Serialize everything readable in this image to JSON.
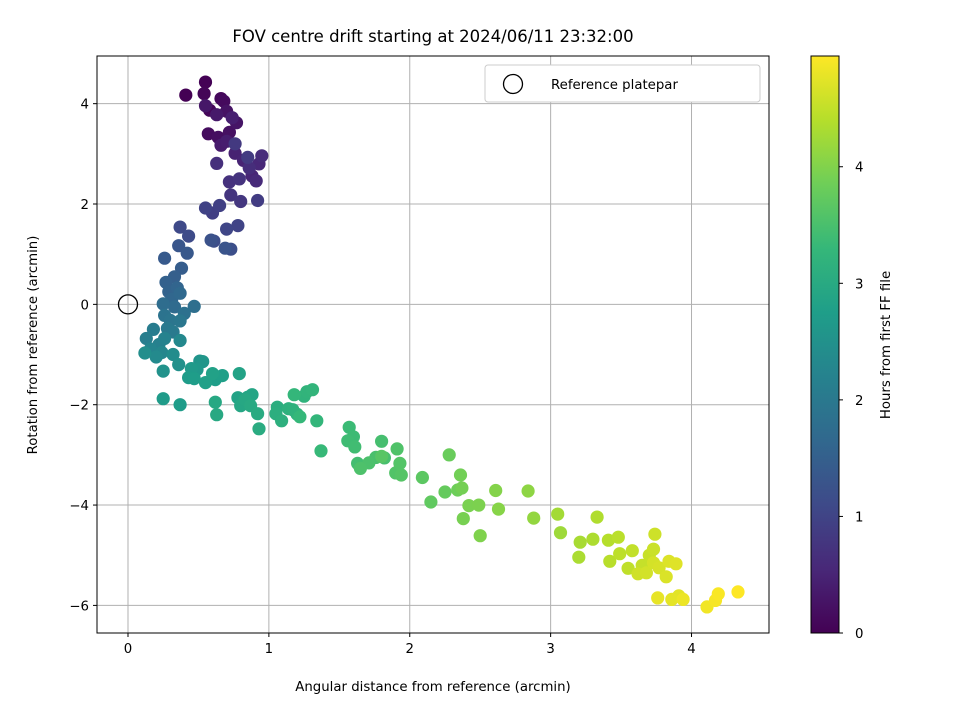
{
  "chart_data": {
    "type": "scatter",
    "title": "FOV centre drift starting at 2024/06/11 23:32:00",
    "xlabel": "Angular distance from reference (arcmin)",
    "ylabel": "Rotation from reference (arcmin)",
    "xlim": [
      -0.22,
      4.55
    ],
    "ylim": [
      -6.55,
      4.95
    ],
    "xticks": [
      "0",
      "1",
      "2",
      "3",
      "4"
    ],
    "yticks": [
      "4",
      "2",
      "0",
      "−2",
      "−4",
      "−6"
    ],
    "grid": true,
    "legend": {
      "entries": [
        "Reference platepar"
      ],
      "placement": "top-right"
    },
    "reference_point": {
      "x": 0,
      "y": 0
    },
    "colorbar": {
      "label": "Hours from first FF file",
      "range": [
        0,
        4.95
      ],
      "ticks": [
        "0",
        "1",
        "2",
        "3",
        "4"
      ],
      "colormap": "viridis",
      "stops": [
        "#440154",
        "#482878",
        "#3e4a89",
        "#31688e",
        "#26828e",
        "#1f9e89",
        "#35b779",
        "#6ece58",
        "#b5de2b",
        "#fde725"
      ]
    },
    "x": [
      0.41,
      0.55,
      0.54,
      0.58,
      0.66,
      0.68,
      0.57,
      0.64,
      0.72,
      0.7,
      0.77,
      0.55,
      0.63,
      0.66,
      0.7,
      0.74,
      0.76,
      0.82,
      0.88,
      0.93,
      0.91,
      0.95,
      0.86,
      0.63,
      0.72,
      0.79,
      0.73,
      0.8,
      0.76,
      0.85,
      0.92,
      0.6,
      0.65,
      0.55,
      0.78,
      0.7,
      0.37,
      0.43,
      0.61,
      0.73,
      0.59,
      0.69,
      0.36,
      0.42,
      0.26,
      0.38,
      0.33,
      0.27,
      0.29,
      0.35,
      0.31,
      0.37,
      0.33,
      0.25,
      0.47,
      0.4,
      0.26,
      0.3,
      0.37,
      0.28,
      0.32,
      0.18,
      0.13,
      0.22,
      0.26,
      0.16,
      0.24,
      0.37,
      0.2,
      0.32,
      0.12,
      0.36,
      0.25,
      0.51,
      0.53,
      0.49,
      0.45,
      0.43,
      0.47,
      0.62,
      0.67,
      0.55,
      0.6,
      0.79,
      0.78,
      0.85,
      0.88,
      0.8,
      0.83,
      0.62,
      0.63,
      0.87,
      0.92,
      0.93,
      0.25,
      0.37,
      1.06,
      1.05,
      1.09,
      1.14,
      1.17,
      1.2,
      1.25,
      1.27,
      1.31,
      1.34,
      1.18,
      1.22,
      1.37,
      1.57,
      1.6,
      1.56,
      1.61,
      1.63,
      1.8,
      1.82,
      1.76,
      1.71,
      1.65,
      1.91,
      1.9,
      1.93,
      1.94,
      1.8,
      2.09,
      2.15,
      2.25,
      2.28,
      2.34,
      2.36,
      2.37,
      2.38,
      2.42,
      2.49,
      2.5,
      2.61,
      2.63,
      2.84,
      2.88,
      3.07,
      3.05,
      3.21,
      3.2,
      3.3,
      3.33,
      3.41,
      3.42,
      3.48,
      3.49,
      3.55,
      3.58,
      3.65,
      3.7,
      3.73,
      3.74,
      3.62,
      3.68,
      3.73,
      3.77,
      3.82,
      3.84,
      3.89,
      3.91,
      3.86,
      3.76,
      3.94,
      4.11,
      4.17,
      4.19,
      4.33
    ],
    "y": [
      4.17,
      4.43,
      4.2,
      3.87,
      4.1,
      4.05,
      3.4,
      3.33,
      3.43,
      3.85,
      3.62,
      3.96,
      3.78,
      3.17,
      3.25,
      3.72,
      3.01,
      2.87,
      2.56,
      2.8,
      2.46,
      2.96,
      2.72,
      2.81,
      2.44,
      2.5,
      2.18,
      2.05,
      3.2,
      2.93,
      2.07,
      1.82,
      1.97,
      1.92,
      1.57,
      1.5,
      1.54,
      1.36,
      1.26,
      1.1,
      1.28,
      1.12,
      1.17,
      1.02,
      0.92,
      0.72,
      0.55,
      0.44,
      0.25,
      0.33,
      0.1,
      0.22,
      -0.05,
      0.01,
      -0.04,
      -0.18,
      -0.22,
      -0.32,
      -0.33,
      -0.48,
      -0.55,
      -0.5,
      -0.68,
      -0.8,
      -0.68,
      -0.89,
      -0.96,
      -0.72,
      -1.05,
      -1.0,
      -0.97,
      -1.2,
      -1.33,
      -1.13,
      -1.14,
      -1.3,
      -1.28,
      -1.46,
      -1.48,
      -1.5,
      -1.42,
      -1.56,
      -1.38,
      -1.38,
      -1.86,
      -1.85,
      -1.8,
      -2.02,
      -1.9,
      -1.95,
      -2.2,
      -2.02,
      -2.18,
      -2.48,
      -1.88,
      -2.0,
      -2.05,
      -2.18,
      -2.32,
      -2.08,
      -2.1,
      -2.19,
      -1.83,
      -1.74,
      -1.7,
      -2.32,
      -1.8,
      -2.24,
      -2.92,
      -2.45,
      -2.64,
      -2.72,
      -2.84,
      -3.17,
      -2.73,
      -3.06,
      -3.05,
      -3.16,
      -3.27,
      -2.88,
      -3.36,
      -3.17,
      -3.4,
      -3.03,
      -3.45,
      -3.94,
      -3.74,
      -3.0,
      -3.7,
      -3.4,
      -3.66,
      -4.27,
      -4.01,
      -4.0,
      -4.61,
      -3.71,
      -4.08,
      -3.72,
      -4.26,
      -4.55,
      -4.18,
      -4.74,
      -5.04,
      -4.68,
      -4.24,
      -4.7,
      -5.12,
      -4.64,
      -4.97,
      -5.26,
      -4.91,
      -5.2,
      -5.0,
      -4.88,
      -4.58,
      -5.37,
      -5.35,
      -5.15,
      -5.25,
      -5.43,
      -5.12,
      -5.17,
      -5.81,
      -5.88,
      -5.85,
      -5.88,
      -6.03,
      -5.9,
      -5.77,
      -5.73
    ],
    "hours": [
      0.0,
      0.02,
      0.05,
      0.08,
      0.1,
      0.13,
      0.16,
      0.19,
      0.22,
      0.25,
      0.28,
      0.31,
      0.34,
      0.37,
      0.4,
      0.43,
      0.46,
      0.49,
      0.52,
      0.55,
      0.58,
      0.61,
      0.64,
      0.67,
      0.7,
      0.73,
      0.76,
      0.79,
      0.82,
      0.85,
      0.88,
      0.91,
      0.94,
      0.97,
      1.0,
      1.03,
      1.08,
      1.12,
      1.16,
      1.2,
      1.24,
      1.28,
      1.32,
      1.36,
      1.4,
      1.44,
      1.48,
      1.52,
      1.56,
      1.6,
      1.64,
      1.68,
      1.72,
      1.76,
      1.8,
      1.84,
      1.88,
      1.92,
      1.96,
      2.0,
      2.04,
      2.08,
      2.12,
      2.16,
      2.2,
      2.24,
      2.28,
      2.32,
      2.36,
      2.4,
      2.44,
      2.48,
      2.52,
      2.56,
      2.6,
      2.64,
      2.68,
      2.72,
      2.74,
      2.76,
      2.78,
      2.8,
      2.82,
      2.84,
      2.86,
      2.88,
      2.9,
      2.92,
      2.94,
      2.96,
      2.98,
      3.0,
      3.02,
      3.04,
      2.7,
      2.72,
      3.08,
      3.1,
      3.12,
      3.14,
      3.16,
      3.18,
      3.2,
      3.22,
      3.24,
      3.26,
      3.28,
      3.3,
      3.32,
      3.36,
      3.38,
      3.4,
      3.42,
      3.44,
      3.46,
      3.48,
      3.5,
      3.52,
      3.54,
      3.56,
      3.58,
      3.6,
      3.62,
      3.64,
      3.68,
      3.72,
      3.76,
      3.8,
      3.84,
      3.88,
      3.9,
      3.92,
      3.94,
      3.96,
      3.98,
      4.02,
      4.04,
      4.1,
      4.14,
      4.22,
      4.26,
      4.3,
      4.32,
      4.34,
      4.36,
      4.4,
      4.42,
      4.44,
      4.46,
      4.48,
      4.5,
      4.52,
      4.54,
      4.56,
      4.58,
      4.6,
      4.62,
      4.64,
      4.66,
      4.68,
      4.7,
      4.72,
      4.74,
      4.76,
      4.78,
      4.82,
      4.86,
      4.9,
      4.92,
      4.95
    ]
  }
}
